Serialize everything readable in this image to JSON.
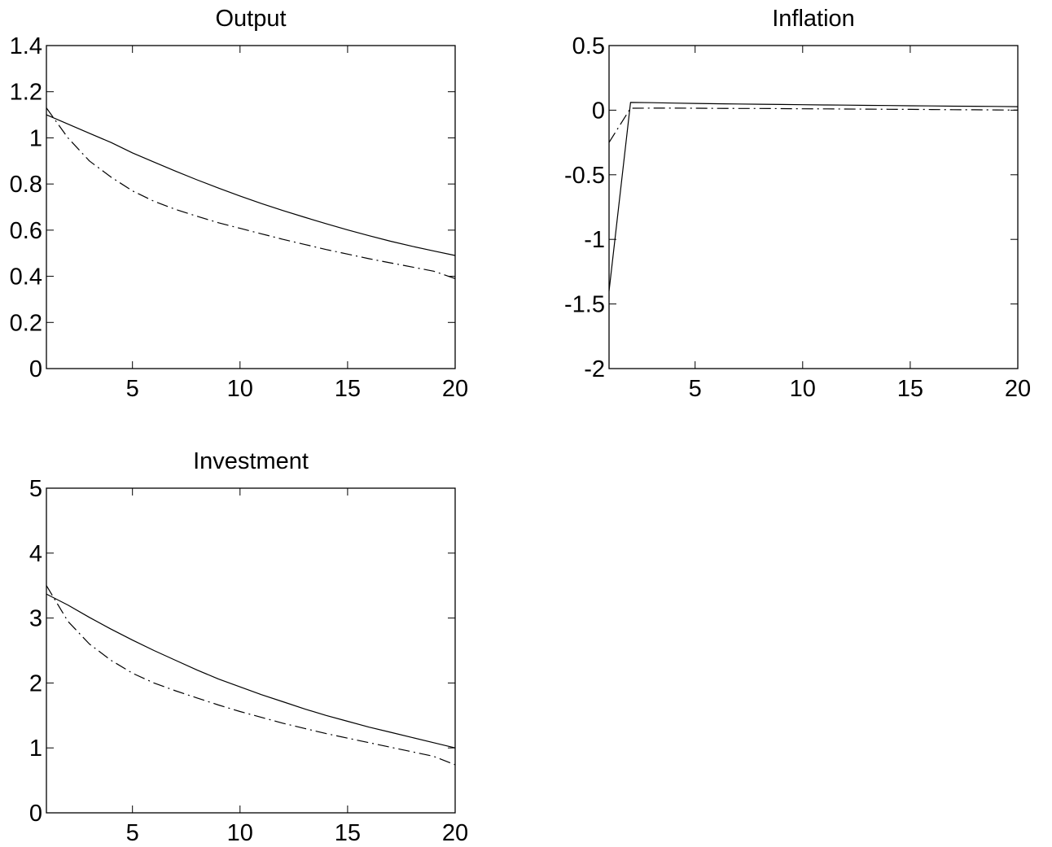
{
  "chart_data": [
    {
      "type": "line",
      "title": "Output",
      "xlabel": "",
      "ylabel": "",
      "xlim": [
        1,
        20
      ],
      "ylim": [
        0,
        1.4
      ],
      "xticks": [
        5,
        10,
        15,
        20
      ],
      "yticks": [
        0,
        0.2,
        0.4,
        0.6,
        0.8,
        1,
        1.2,
        1.4
      ],
      "xticklabels": [
        "5",
        "10",
        "15",
        "20"
      ],
      "yticklabels": [
        "0",
        "0.2",
        "0.4",
        "0.6",
        "0.8",
        "1",
        "1.2",
        "1.4"
      ],
      "x": [
        1,
        2,
        3,
        4,
        5,
        6,
        7,
        8,
        9,
        10,
        11,
        12,
        13,
        14,
        15,
        16,
        17,
        18,
        19,
        20
      ],
      "series": [
        {
          "style": "solid",
          "values": [
            1.1,
            1.06,
            1.02,
            0.98,
            0.935,
            0.895,
            0.856,
            0.818,
            0.782,
            0.748,
            0.715,
            0.685,
            0.656,
            0.628,
            0.601,
            0.576,
            0.552,
            0.53,
            0.51,
            0.49
          ]
        },
        {
          "style": "dashdot",
          "values": [
            1.13,
            1.0,
            0.9,
            0.83,
            0.77,
            0.725,
            0.69,
            0.66,
            0.632,
            0.608,
            0.584,
            0.56,
            0.538,
            0.516,
            0.496,
            0.476,
            0.458,
            0.44,
            0.422,
            0.39
          ]
        }
      ]
    },
    {
      "type": "line",
      "title": "Inflation",
      "xlabel": "",
      "ylabel": "",
      "xlim": [
        1,
        20
      ],
      "ylim": [
        -2,
        0.5
      ],
      "xticks": [
        5,
        10,
        15,
        20
      ],
      "yticks": [
        -2,
        -1.5,
        -1,
        -0.5,
        0,
        0.5
      ],
      "xticklabels": [
        "5",
        "10",
        "15",
        "20"
      ],
      "yticklabels": [
        "-2",
        "-1.5",
        "-1",
        "-0.5",
        "0",
        "0.5"
      ],
      "x": [
        1,
        2,
        3,
        4,
        5,
        6,
        7,
        8,
        9,
        10,
        11,
        12,
        13,
        14,
        15,
        16,
        17,
        18,
        19,
        20
      ],
      "series": [
        {
          "style": "solid",
          "values": [
            -1.4,
            0.06,
            0.058,
            0.055,
            0.052,
            0.05,
            0.048,
            0.046,
            0.044,
            0.042,
            0.04,
            0.039,
            0.037,
            0.036,
            0.034,
            0.033,
            0.031,
            0.03,
            0.029,
            0.027
          ]
        },
        {
          "style": "dashdot",
          "values": [
            -0.25,
            0.015,
            0.016,
            0.016,
            0.015,
            0.014,
            0.013,
            0.013,
            0.012,
            0.011,
            0.01,
            0.009,
            0.008,
            0.007,
            0.006,
            0.005,
            0.004,
            0.003,
            0.002,
            0.0
          ]
        }
      ]
    },
    {
      "type": "line",
      "title": "Investment",
      "xlabel": "",
      "ylabel": "",
      "xlim": [
        1,
        20
      ],
      "ylim": [
        0,
        5
      ],
      "xticks": [
        5,
        10,
        15,
        20
      ],
      "yticks": [
        0,
        1,
        2,
        3,
        4,
        5
      ],
      "xticklabels": [
        "5",
        "10",
        "15",
        "20"
      ],
      "yticklabels": [
        "0",
        "1",
        "2",
        "3",
        "4",
        "5"
      ],
      "x": [
        1,
        2,
        3,
        4,
        5,
        6,
        7,
        8,
        9,
        10,
        11,
        12,
        13,
        14,
        15,
        16,
        17,
        18,
        19,
        20
      ],
      "series": [
        {
          "style": "solid",
          "values": [
            3.37,
            3.2,
            3.01,
            2.83,
            2.66,
            2.5,
            2.35,
            2.2,
            2.06,
            1.94,
            1.82,
            1.71,
            1.6,
            1.5,
            1.41,
            1.32,
            1.24,
            1.16,
            1.08,
            1.0
          ]
        },
        {
          "style": "dashdot",
          "values": [
            3.5,
            2.95,
            2.6,
            2.35,
            2.15,
            2.0,
            1.88,
            1.77,
            1.66,
            1.56,
            1.47,
            1.38,
            1.3,
            1.22,
            1.15,
            1.08,
            1.01,
            0.94,
            0.87,
            0.74
          ]
        }
      ]
    }
  ]
}
